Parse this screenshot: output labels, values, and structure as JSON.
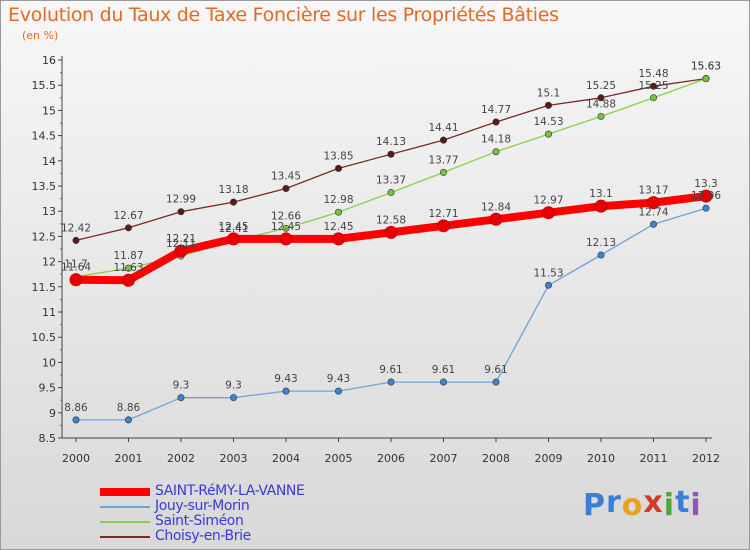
{
  "title": "Evolution du Taux de Taxe Foncière sur les Propriétés Bâties",
  "subtitle": "(en %)",
  "logo": {
    "letters": [
      "P",
      "r",
      "o",
      "x",
      "i",
      "t",
      "i"
    ],
    "colors": [
      "#3a7fd5",
      "#3a7fd5",
      "#e8a21f",
      "#d03a2a",
      "#4aa83a",
      "#3a7fd5",
      "#8a5ab5"
    ]
  },
  "chart_data": {
    "type": "line",
    "title": "Evolution du Taux de Taxe Foncière sur les Propriétés Bâties",
    "ylabel": "(en %)",
    "xlabel": "",
    "x": [
      "2000",
      "2001",
      "2002",
      "2003",
      "2004",
      "2005",
      "2006",
      "2007",
      "2008",
      "2009",
      "2010",
      "2011",
      "2012"
    ],
    "ylim": [
      8.5,
      16
    ],
    "yticks": [
      "8.5",
      "9",
      "9.5",
      "10",
      "10.5",
      "11",
      "11.5",
      "12",
      "12.5",
      "13",
      "13.5",
      "14",
      "14.5",
      "15",
      "15.5",
      "16"
    ],
    "grid": false,
    "series": [
      {
        "name": "Choisy-en-Brie",
        "color": "#7b2a2a",
        "marker": "#5a1a1a",
        "values": [
          12.42,
          12.67,
          12.99,
          13.18,
          13.45,
          13.85,
          14.13,
          14.41,
          14.77,
          15.1,
          15.25,
          15.48,
          15.63
        ],
        "labels": [
          "12.42",
          "12.67",
          "12.99",
          "13.18",
          "13.45",
          "13.85",
          "14.13",
          "14.41",
          "14.77",
          "15.1",
          "15.25",
          "15.48",
          "15.63"
        ]
      },
      {
        "name": "Saint-Siméon",
        "color": "#88d04a",
        "marker": "#79c23e",
        "values": [
          11.7,
          11.87,
          12.11,
          12.41,
          12.66,
          12.98,
          13.37,
          13.77,
          14.18,
          14.53,
          14.88,
          15.25,
          15.63
        ],
        "labels": [
          "11.7",
          "11.87",
          "12.11",
          "12.41",
          "12.66",
          "12.98",
          "13.37",
          "13.77",
          "14.18",
          "14.53",
          "14.88",
          "15.25",
          "15.63"
        ]
      },
      {
        "name": "Jouy-sur-Morin",
        "color": "#6fa3d6",
        "marker": "#3b86cf",
        "values": [
          8.86,
          8.86,
          9.3,
          9.3,
          9.43,
          9.43,
          9.61,
          9.61,
          9.61,
          11.53,
          12.13,
          12.74,
          13.06
        ],
        "labels": [
          "8.86",
          "8.86",
          "9.3",
          "9.3",
          "9.43",
          "9.43",
          "9.61",
          "9.61",
          "9.61",
          "11.53",
          "12.13",
          "12.74",
          "13.06"
        ]
      },
      {
        "name": "SAINT-RéMY-LA-VANNE",
        "color": "#ff0000",
        "marker": "#e60000",
        "values": [
          11.64,
          11.63,
          12.21,
          12.45,
          12.45,
          12.45,
          12.58,
          12.71,
          12.84,
          12.97,
          13.1,
          13.17,
          13.3
        ],
        "labels": [
          "11.64",
          "11.63",
          "12.21",
          "12.45",
          "12.45",
          "12.45",
          "12.58",
          "12.71",
          "12.84",
          "12.97",
          "13.1",
          "13.17",
          "13.3"
        ]
      }
    ],
    "legend_order": [
      "SAINT-RéMY-LA-VANNE",
      "Jouy-sur-Morin",
      "Saint-Siméon",
      "Choisy-en-Brie"
    ],
    "legend_position": "bottom-left"
  }
}
